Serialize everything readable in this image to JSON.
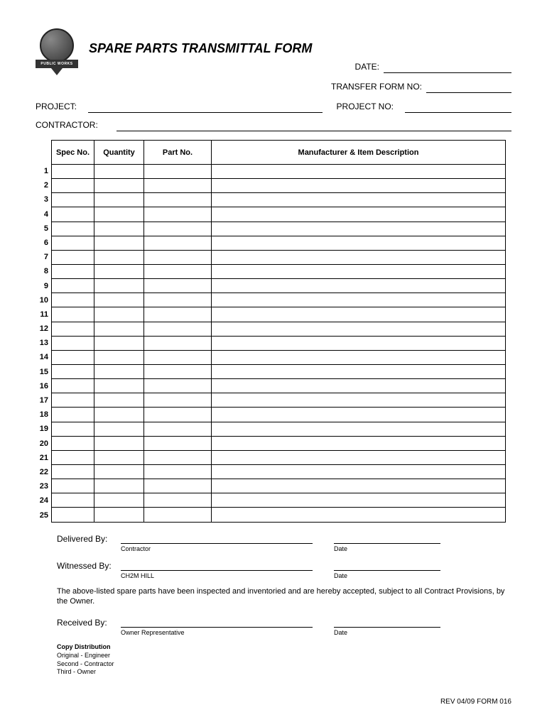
{
  "logo": {
    "banner_text": "PUBLIC WORKS"
  },
  "title": "SPARE PARTS TRANSMITTAL FORM",
  "fields": {
    "date_label": "DATE:",
    "transfer_label": "TRANSFER FORM NO:",
    "project_label": "PROJECT:",
    "project_no_label": "PROJECT NO:",
    "contractor_label": "CONTRACTOR:"
  },
  "table": {
    "columns": {
      "spec": "Spec No.",
      "qty": "Quantity",
      "part": "Part No.",
      "desc": "Manufacturer & Item Description"
    },
    "row_count": 25,
    "col_widths": {
      "spec": 60,
      "qty": 70,
      "part": 95
    }
  },
  "signatures": {
    "delivered_label": "Delivered By:",
    "delivered_sub": "Contractor",
    "witnessed_label": "Witnessed By:",
    "witnessed_sub": "CH2M HILL",
    "received_label": "Received By:",
    "received_sub": "Owner Representative",
    "date_sub": "Date"
  },
  "statement": "The above-listed spare parts have been inspected and inventoried and are hereby accepted, subject to all Contract Provisions, by the Owner.",
  "distribution": {
    "title": "Copy Distribution",
    "lines": [
      "Original - Engineer",
      "Second - Contractor",
      "Third - Owner"
    ]
  },
  "footer": {
    "rev": "REV 04/09",
    "form": "FORM 016"
  },
  "colors": {
    "text": "#000000",
    "bg": "#ffffff",
    "border": "#000000"
  }
}
